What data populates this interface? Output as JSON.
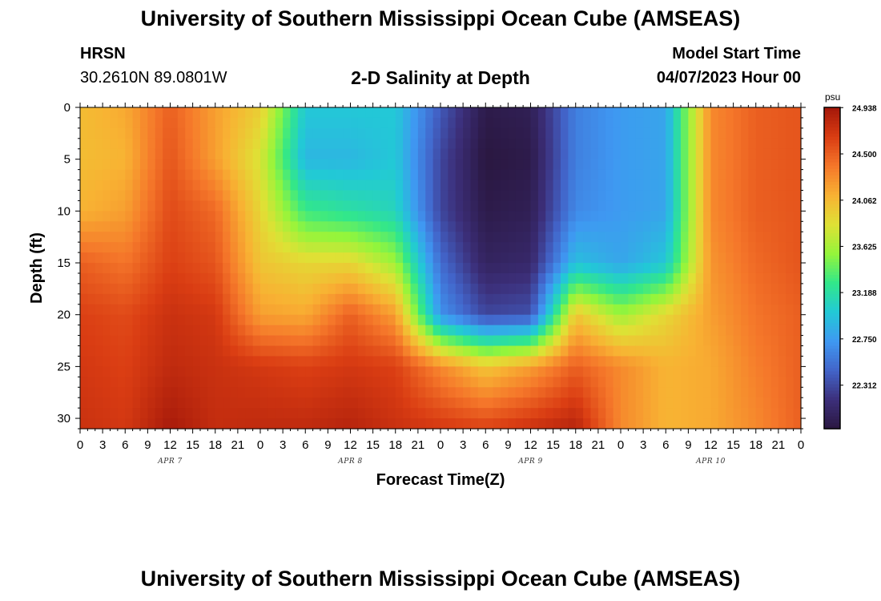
{
  "page": {
    "title": "University of Southern Mississippi Ocean Cube (AMSEAS)",
    "station": {
      "name": "HRSN",
      "coords": "30.2610N  89.0801W"
    },
    "model_start": {
      "label": "Model Start Time",
      "value": "04/07/2023 Hour 00"
    }
  },
  "chart_data": {
    "type": "heatmap",
    "title": "2-D Salinity at Depth",
    "xlabel": "Forecast Time(Z)",
    "ylabel": "Depth (ft)",
    "x_tick_labels": [
      "0",
      "3",
      "6",
      "9",
      "12",
      "15",
      "18",
      "21",
      "0",
      "3",
      "6",
      "9",
      "12",
      "15",
      "18",
      "21",
      "0",
      "3",
      "6",
      "9",
      "12",
      "15",
      "18",
      "21",
      "0",
      "3",
      "6",
      "9",
      "12",
      "15",
      "18",
      "21",
      "0"
    ],
    "x_date_labels": [
      "APR 7",
      "APR 8",
      "APR 9",
      "APR 10"
    ],
    "x_range_hours": [
      0,
      96
    ],
    "y_ticks": [
      0,
      5,
      10,
      15,
      20,
      25,
      30
    ],
    "y_range_ft": [
      0,
      31
    ],
    "y_inverted": true,
    "colorbar": {
      "unit": "psu",
      "tick_labels": [
        "24.938",
        "24.500",
        "24.062",
        "23.625",
        "23.188",
        "22.750",
        "22.312"
      ],
      "range": [
        21.9,
        24.94
      ],
      "colors": [
        "#2a1740",
        "#3c2f7a",
        "#4264c9",
        "#3f98f2",
        "#22c9d6",
        "#32e78a",
        "#94f53b",
        "#dfe135",
        "#f8b233",
        "#f5772a",
        "#da3d13",
        "#a4180a"
      ]
    },
    "hours": [
      0,
      6,
      12,
      18,
      24,
      30,
      36,
      42,
      48,
      54,
      60,
      66,
      72,
      78,
      84,
      90,
      96
    ],
    "depths_ft": [
      0,
      5,
      10,
      15,
      20,
      25,
      31
    ],
    "salinity_psu": [
      [
        24.05,
        24.15,
        24.5,
        24.2,
        23.95,
        23.0,
        23.0,
        23.0,
        22.4,
        21.95,
        22.0,
        22.6,
        22.75,
        22.8,
        24.3,
        24.5,
        24.55
      ],
      [
        24.05,
        24.1,
        24.55,
        24.2,
        23.8,
        22.9,
        22.9,
        23.0,
        22.3,
        21.9,
        21.95,
        22.6,
        22.75,
        22.8,
        24.3,
        24.5,
        24.55
      ],
      [
        24.1,
        24.2,
        24.6,
        24.45,
        23.9,
        23.3,
        23.2,
        23.1,
        22.3,
        21.95,
        22.0,
        22.65,
        22.75,
        22.8,
        24.3,
        24.5,
        24.55
      ],
      [
        24.5,
        24.4,
        24.65,
        24.55,
        24.0,
        23.9,
        23.9,
        23.6,
        22.5,
        22.05,
        22.1,
        22.95,
        22.8,
        23.0,
        24.25,
        24.45,
        24.55
      ],
      [
        24.65,
        24.6,
        24.75,
        24.7,
        24.2,
        24.15,
        24.5,
        24.2,
        22.7,
        22.3,
        22.35,
        24.0,
        23.6,
        23.9,
        24.2,
        24.4,
        24.5
      ],
      [
        24.7,
        24.65,
        24.8,
        24.75,
        24.7,
        24.65,
        24.7,
        24.65,
        24.3,
        24.0,
        24.2,
        24.5,
        24.3,
        24.1,
        24.15,
        24.35,
        24.5
      ],
      [
        24.75,
        24.7,
        24.92,
        24.78,
        24.8,
        24.8,
        24.85,
        24.75,
        24.7,
        24.65,
        24.75,
        24.85,
        24.3,
        24.1,
        24.15,
        24.3,
        24.5
      ]
    ]
  }
}
